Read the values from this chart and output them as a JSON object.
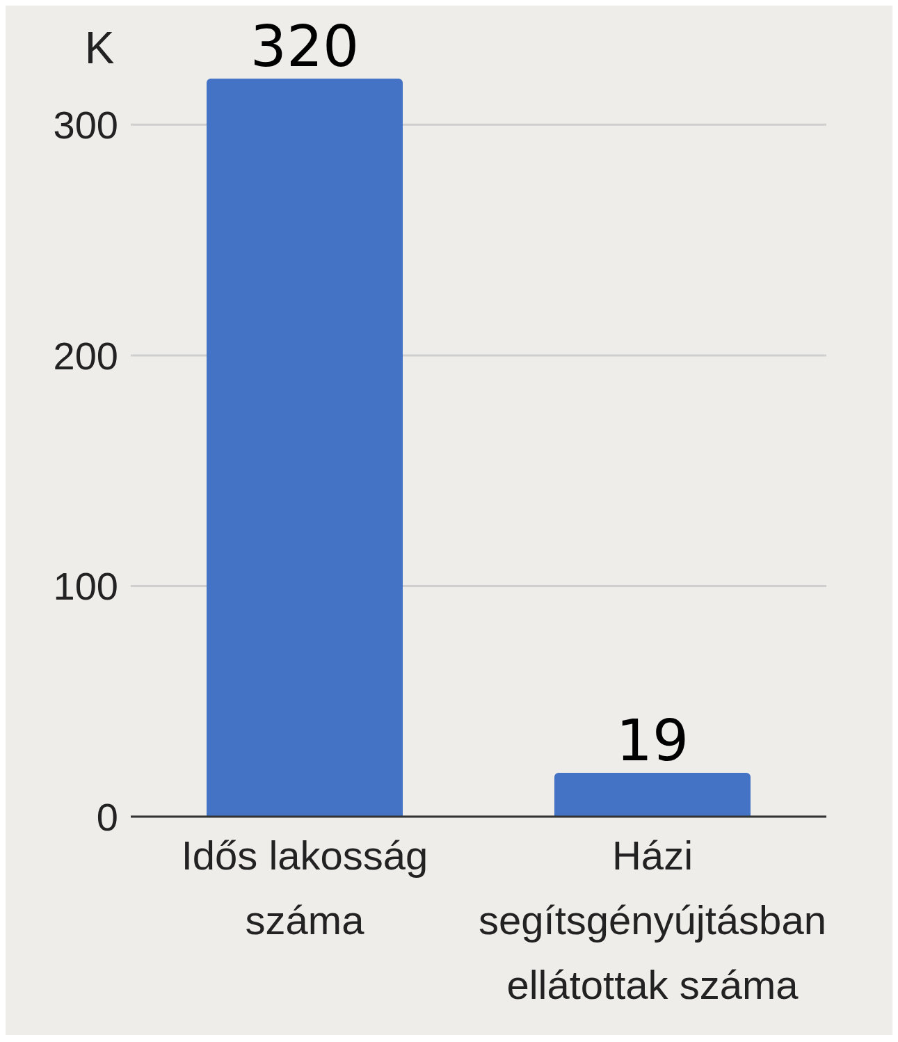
{
  "chart_data": {
    "type": "bar",
    "ylabel": "K",
    "categories": [
      "Idős lakosság száma",
      "Házi segítsgényújtásban ellátottak száma"
    ],
    "values": [
      320,
      19
    ],
    "color": "#4472c4",
    "ylim": [
      0,
      320
    ],
    "yticks": [
      0,
      100,
      200,
      300
    ],
    "grid": "y",
    "data_labels": true
  }
}
